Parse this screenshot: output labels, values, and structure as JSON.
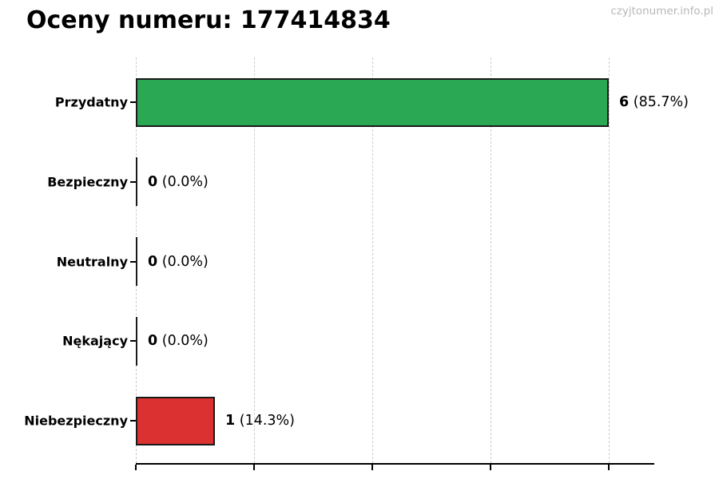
{
  "page": {
    "watermark": "czyjtonumer.info.pl",
    "background": "#ffffff"
  },
  "chart_data": {
    "type": "bar",
    "orientation": "horizontal",
    "title": "Oceny numeru: 177414834",
    "categories": [
      "Przydatny",
      "Bezpieczny",
      "Neutralny",
      "Nękający",
      "Niebezpieczny"
    ],
    "values": [
      6,
      0,
      0,
      0,
      1
    ],
    "percents": [
      85.7,
      0.0,
      0.0,
      0.0,
      14.3
    ],
    "rows": [
      {
        "label": "Przydatny",
        "num": 6,
        "value_text": "6",
        "pct_text": "(85.7%)",
        "color": "#20a34a"
      },
      {
        "label": "Bezpieczny",
        "num": 0,
        "value_text": "0",
        "pct_text": "(0.0%)",
        "color": null
      },
      {
        "label": "Neutralny",
        "num": 0,
        "value_text": "0",
        "pct_text": "(0.0%)",
        "color": null
      },
      {
        "label": "Nękający",
        "num": 0,
        "value_text": "0",
        "pct_text": "(0.0%)",
        "color": null
      },
      {
        "label": "Niebezpieczny",
        "num": 1,
        "value_text": "1",
        "pct_text": "(14.3%)",
        "color": "#d92626"
      }
    ],
    "xlabel": "",
    "ylabel": "",
    "xlim": [
      0,
      6.58
    ],
    "xticks": [
      0,
      1.5,
      3,
      4.5,
      6
    ],
    "xtick_labels_visible": false,
    "grid": "vertical-dashed",
    "legend": "none",
    "colors": {
      "green_bar": "#20a34a",
      "red_bar": "#d92626",
      "bar_border": "#1a1a1a",
      "grid_color": "#cccccc",
      "axis_color": "#000000",
      "title_color": "#000000",
      "watermark_color": "#b8b8b8"
    }
  }
}
